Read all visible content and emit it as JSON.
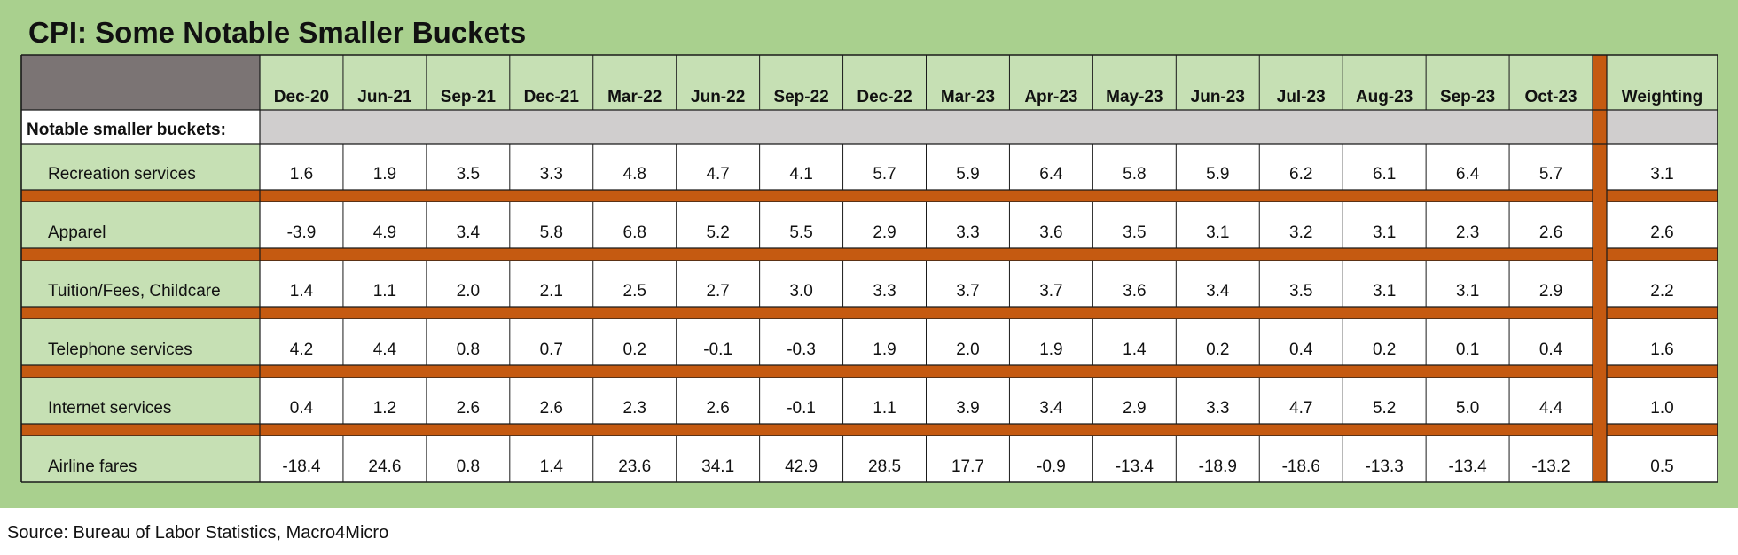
{
  "title": "CPI: Some Notable Smaller Buckets",
  "source": "Source: Bureau of Labor Statistics, Macro4Micro",
  "colors": {
    "panel_green": "#a9d08e",
    "label_green": "#c6e0b4",
    "header_gray": "#7b7474",
    "section_gray": "#d0cece",
    "separator_orange": "#c55a11",
    "cell_white": "#ffffff"
  },
  "chart_data": {
    "type": "table",
    "title": "CPI: Some Notable Smaller Buckets",
    "columns": [
      "Dec-20",
      "Jun-21",
      "Sep-21",
      "Dec-21",
      "Mar-22",
      "Jun-22",
      "Sep-22",
      "Dec-22",
      "Mar-23",
      "Apr-23",
      "May-23",
      "Jun-23",
      "Jul-23",
      "Aug-23",
      "Sep-23",
      "Oct-23"
    ],
    "weight_header": "Weighting",
    "section_label": "Notable smaller buckets:",
    "rows": [
      {
        "label": "Recreation services",
        "values": [
          "1.6",
          "1.9",
          "3.5",
          "3.3",
          "4.8",
          "4.7",
          "4.1",
          "5.7",
          "5.9",
          "6.4",
          "5.8",
          "5.9",
          "6.2",
          "6.1",
          "6.4",
          "5.7"
        ],
        "weight": "3.1"
      },
      {
        "label": "Apparel",
        "values": [
          "-3.9",
          "4.9",
          "3.4",
          "5.8",
          "6.8",
          "5.2",
          "5.5",
          "2.9",
          "3.3",
          "3.6",
          "3.5",
          "3.1",
          "3.2",
          "3.1",
          "2.3",
          "2.6"
        ],
        "weight": "2.6"
      },
      {
        "label": "Tuition/Fees, Childcare",
        "values": [
          "1.4",
          "1.1",
          "2.0",
          "2.1",
          "2.5",
          "2.7",
          "3.0",
          "3.3",
          "3.7",
          "3.7",
          "3.6",
          "3.4",
          "3.5",
          "3.1",
          "3.1",
          "2.9"
        ],
        "weight": "2.2"
      },
      {
        "label": "Telephone services",
        "values": [
          "4.2",
          "4.4",
          "0.8",
          "0.7",
          "0.2",
          "-0.1",
          "-0.3",
          "1.9",
          "2.0",
          "1.9",
          "1.4",
          "0.2",
          "0.4",
          "0.2",
          "0.1",
          "0.4"
        ],
        "weight": "1.6"
      },
      {
        "label": "Internet services",
        "values": [
          "0.4",
          "1.2",
          "2.6",
          "2.6",
          "2.3",
          "2.6",
          "-0.1",
          "1.1",
          "3.9",
          "3.4",
          "2.9",
          "3.3",
          "4.7",
          "5.2",
          "5.0",
          "4.4"
        ],
        "weight": "1.0"
      },
      {
        "label": "Airline fares",
        "values": [
          "-18.4",
          "24.6",
          "0.8",
          "1.4",
          "23.6",
          "34.1",
          "42.9",
          "28.5",
          "17.7",
          "-0.9",
          "-13.4",
          "-18.9",
          "-18.6",
          "-13.3",
          "-13.4",
          "-13.2"
        ],
        "weight": "0.5"
      }
    ]
  }
}
